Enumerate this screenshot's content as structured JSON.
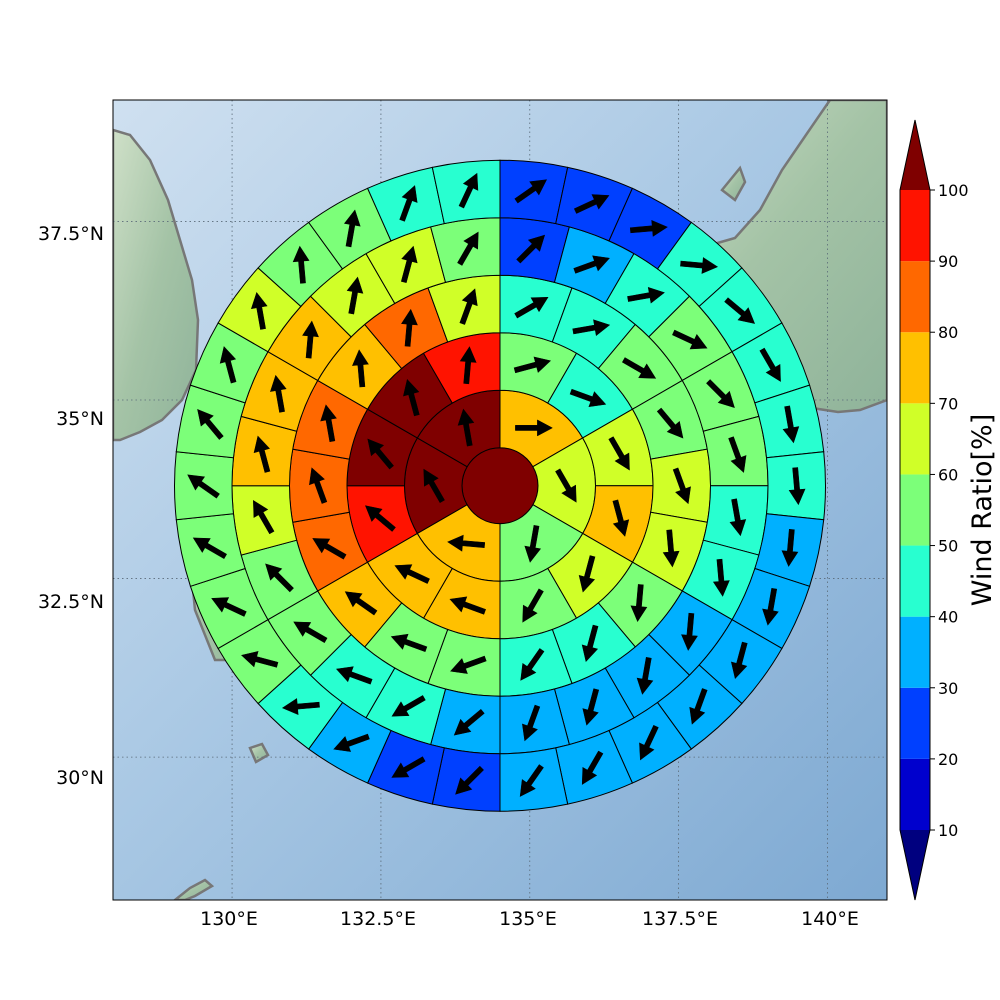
{
  "map": {
    "lon_ticks": [
      "130°E",
      "132.5°E",
      "135°E",
      "137.5°E",
      "140°E"
    ],
    "lat_ticks": [
      "37.5°N",
      "35°N",
      "32.5°N",
      "30°N"
    ],
    "lon_range": [
      128.0,
      141.0
    ],
    "lat_range": [
      28.0,
      39.2
    ],
    "graticule": "dotted"
  },
  "colorbar": {
    "label": "Wind Ratio[%]",
    "ticks": [
      "10",
      "20",
      "30",
      "40",
      "50",
      "60",
      "70",
      "80",
      "90",
      "100"
    ],
    "colors": [
      "#00007f",
      "#0000cd",
      "#0040ff",
      "#00b0ff",
      "#28ffd0",
      "#7cff79",
      "#d0ff28",
      "#ffc000",
      "#ff6800",
      "#ff1300",
      "#7f0000"
    ],
    "extend": "both"
  },
  "chart_data": {
    "type": "polar-grid",
    "center": {
      "lon": 134.5,
      "lat": 33.8
    },
    "rings": [
      {
        "sectors": 1,
        "values": [
          100
        ],
        "arrow_dirs": []
      },
      {
        "sectors": 6,
        "values": [
          72,
          63,
          53,
          72,
          100,
          100
        ],
        "arrow_dirs": [
          90,
          150,
          190,
          275,
          330,
          350
        ]
      },
      {
        "sectors": 12,
        "values": [
          52,
          48,
          62,
          72,
          63,
          57,
          75,
          78,
          98,
          100,
          100,
          98
        ],
        "arrow_dirs": [
          75,
          110,
          150,
          165,
          195,
          210,
          290,
          295,
          310,
          320,
          345,
          5
        ]
      },
      {
        "sectors": 18,
        "values": [
          45,
          43,
          50,
          55,
          60,
          63,
          57,
          48,
          43,
          57,
          56,
          72,
          83,
          85,
          85,
          78,
          85,
          65
        ],
        "arrow_dirs": [
          60,
          80,
          120,
          140,
          160,
          175,
          185,
          195,
          215,
          250,
          290,
          305,
          300,
          340,
          350,
          355,
          5,
          20
        ]
      },
      {
        "sectors": 24,
        "values": [
          22,
          38,
          43,
          55,
          52,
          55,
          48,
          42,
          38,
          38,
          38,
          38,
          35,
          45,
          43,
          55,
          55,
          62,
          72,
          73,
          78,
          68,
          62,
          55
        ],
        "arrow_dirs": [
          45,
          70,
          80,
          115,
          135,
          160,
          170,
          175,
          185,
          190,
          195,
          200,
          230,
          240,
          290,
          300,
          315,
          330,
          345,
          350,
          5,
          10,
          15,
          30
        ]
      },
      {
        "sectors": 30,
        "values": [
          25,
          23,
          23,
          43,
          45,
          44,
          45,
          42,
          35,
          35,
          35,
          38,
          38,
          38,
          38,
          22,
          25,
          35,
          42,
          52,
          55,
          55,
          55,
          50,
          57,
          65,
          57,
          55,
          48,
          45
        ],
        "arrow_dirs": [
          55,
          65,
          85,
          95,
          130,
          150,
          170,
          175,
          185,
          190,
          195,
          200,
          205,
          210,
          215,
          225,
          240,
          250,
          265,
          285,
          295,
          300,
          305,
          320,
          345,
          350,
          355,
          10,
          20,
          25
        ]
      }
    ]
  }
}
